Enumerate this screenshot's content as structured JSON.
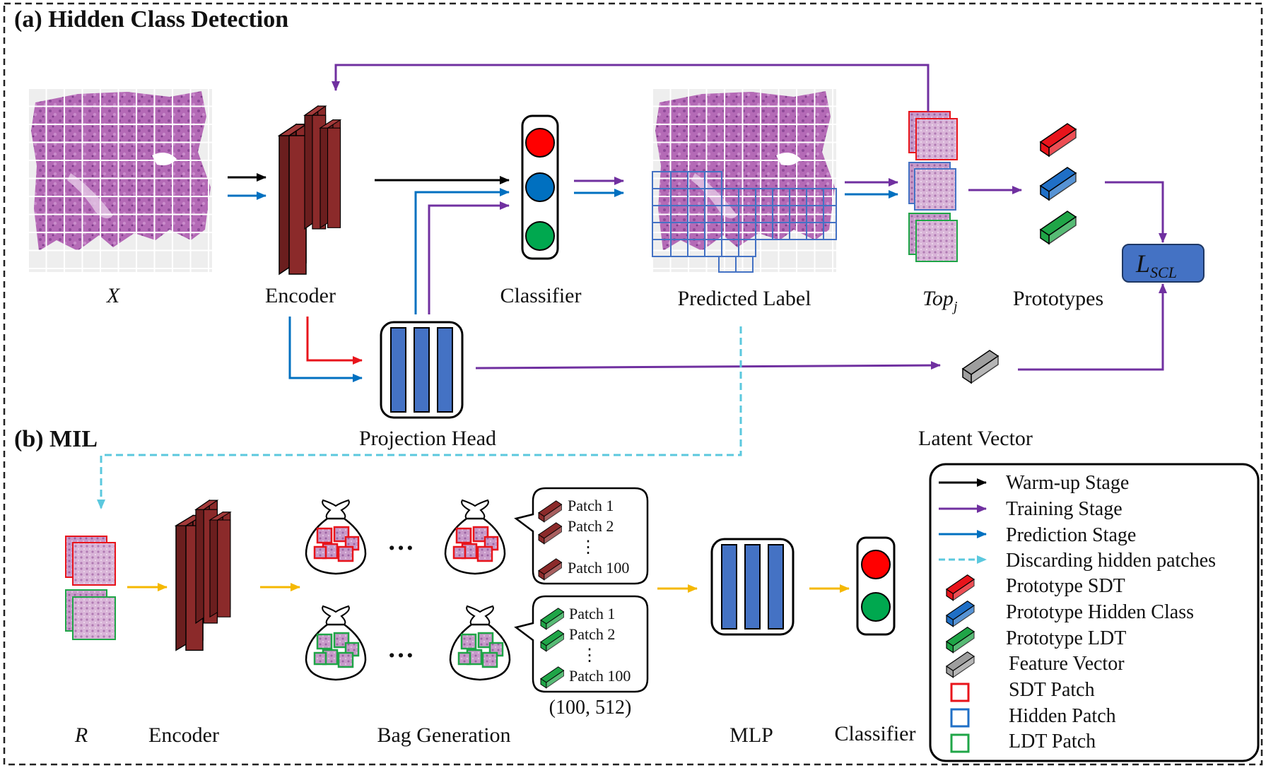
{
  "sections": {
    "a_title": "(a) Hidden Class Detection",
    "b_title": "(b) MIL"
  },
  "part_a": {
    "input_label": "X",
    "encoder_label": "Encoder",
    "classifier_label": "Classifier",
    "predicted_label": "Predicted Label",
    "top_label_main": "Top",
    "top_label_sub": "j",
    "prototypes_label": "Prototypes",
    "loss_main": "L",
    "loss_sub": "SCL",
    "projection_label": "Projection Head",
    "latent_label": "Latent Vector"
  },
  "part_b": {
    "input_label": "R",
    "encoder_label": "Encoder",
    "bag_label": "Bag Generation",
    "ellipsis": "…",
    "vdots": "⋮",
    "patches_top": [
      "Patch 1",
      "Patch 2",
      "Patch 100"
    ],
    "patches_bottom": [
      "Patch 1",
      "Patch 2",
      "Patch 100"
    ],
    "shape_label": "(100, 512)",
    "mlp_label": "MLP",
    "classifier_label": "Classifier"
  },
  "legend": {
    "items": [
      "Warm-up Stage",
      "Training Stage",
      "Prediction Stage",
      "Discarding hidden patches",
      "Prototype SDT",
      "Prototype Hidden Class",
      "Prototype LDT",
      "Feature Vector",
      "SDT Patch",
      "Hidden Patch",
      "LDT Patch"
    ]
  },
  "colors": {
    "warmup": "#000000",
    "training": "#7030A0",
    "prediction": "#0070C0",
    "discard": "#5BC8DE",
    "sdt": "#E8141B",
    "hidden": "#1F6FC6",
    "ldt": "#1FA547",
    "feature": "#9E9E9E",
    "encoder": "#8B2A2A",
    "flow_b": "#F5B800",
    "tissue": "#B46AB6"
  }
}
